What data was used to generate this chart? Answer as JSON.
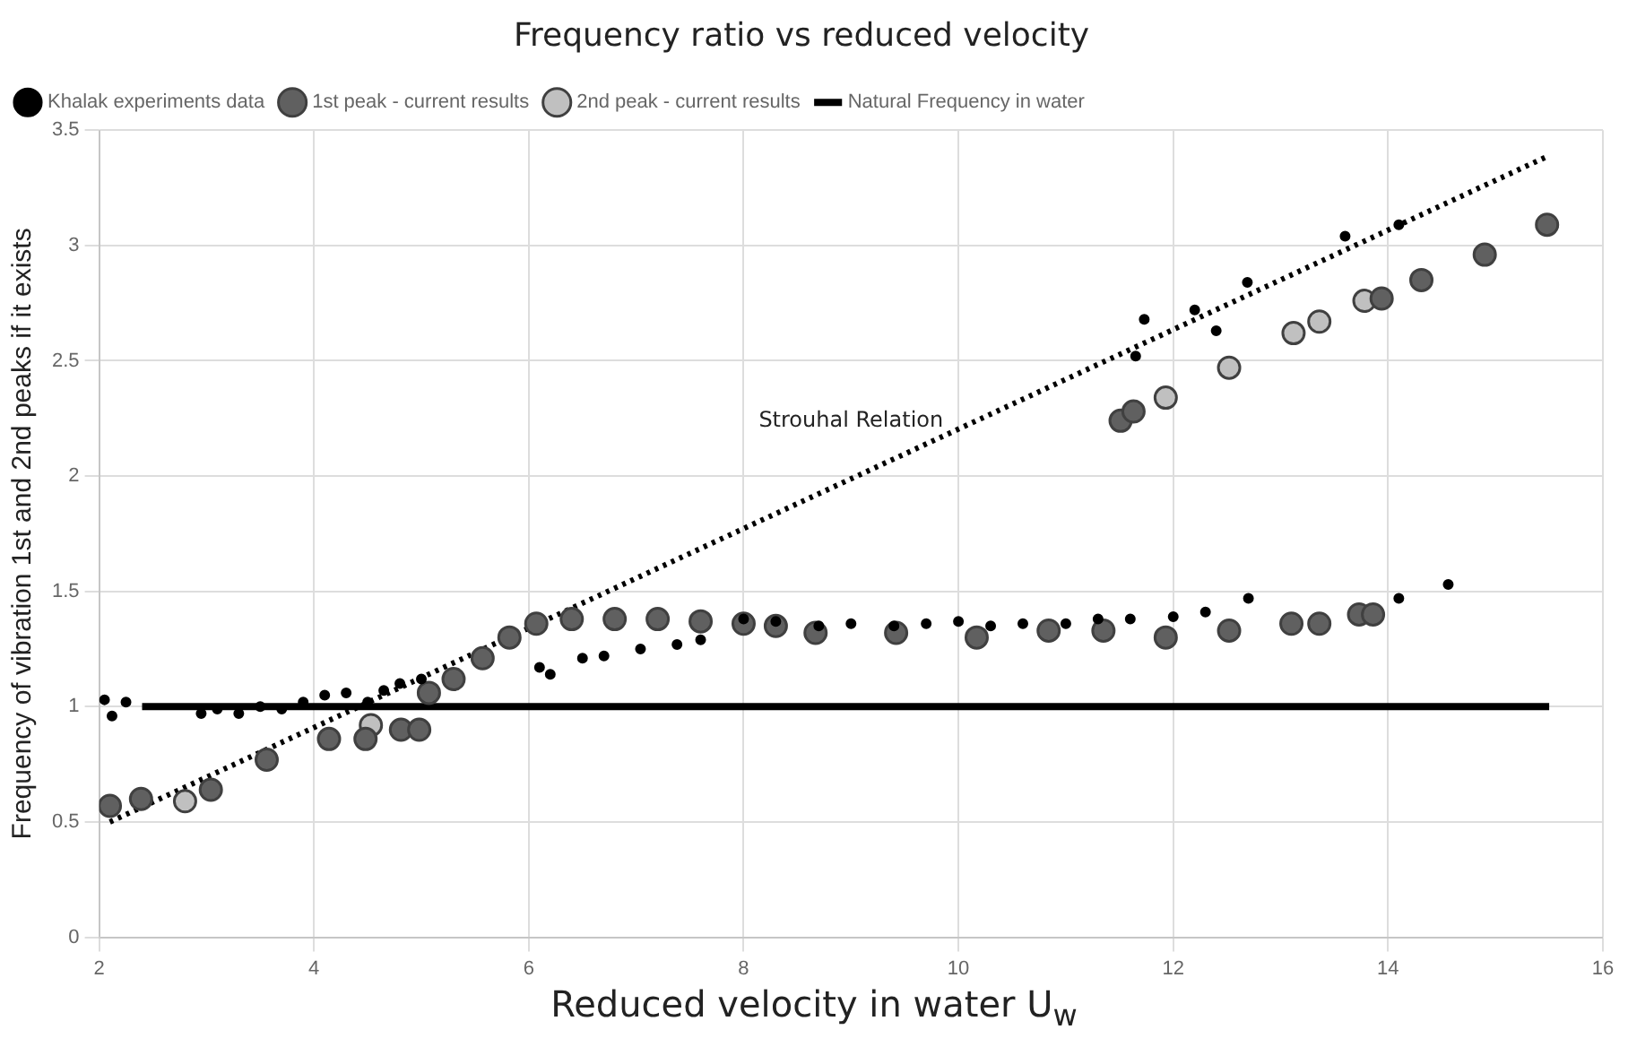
{
  "chart_data": {
    "type": "scatter",
    "title": "Frequency ratio vs reduced velocity",
    "xlabel": "Reduced velocity in water U$_{w}$",
    "ylabel": "Frequency of vibration 1st and 2nd peaks if it exists",
    "xlim": [
      2,
      16
    ],
    "xticks": [
      2,
      4,
      6,
      8,
      10,
      12,
      14,
      16
    ],
    "ylim": [
      0,
      3.5
    ],
    "yticks": [
      0,
      0.5,
      1,
      1.5,
      2,
      2.5,
      3,
      3.5
    ],
    "grid": true,
    "legend": "top left",
    "annotations": [
      "Strouhal Relation"
    ],
    "series": [
      {
        "name": "Khalak experiments data",
        "marker": "circle",
        "color": "#000000",
        "x": [
          2.05,
          2.12,
          2.25,
          2.95,
          3.1,
          3.3,
          3.5,
          3.7,
          3.9,
          4.1,
          4.3,
          4.5,
          4.65,
          4.8,
          5.0,
          6.1,
          6.2,
          6.5,
          6.7,
          7.04,
          7.38,
          7.6,
          8.0,
          8.3,
          8.7,
          9.0,
          9.4,
          9.7,
          10.0,
          10.3,
          10.6,
          11.0,
          11.3,
          11.6,
          12.0,
          12.3,
          12.7,
          14.1,
          14.56,
          11.65,
          11.73,
          12.2,
          12.4,
          12.69,
          13.6,
          14.1
        ],
        "values": [
          1.03,
          0.96,
          1.02,
          0.97,
          0.99,
          0.97,
          1.0,
          0.99,
          1.02,
          1.05,
          1.06,
          1.02,
          1.07,
          1.1,
          1.12,
          1.17,
          1.14,
          1.21,
          1.22,
          1.25,
          1.27,
          1.29,
          1.38,
          1.37,
          1.35,
          1.36,
          1.35,
          1.36,
          1.37,
          1.35,
          1.36,
          1.36,
          1.38,
          1.38,
          1.39,
          1.41,
          1.47,
          1.47,
          1.53,
          2.52,
          2.68,
          2.72,
          2.63,
          2.84,
          3.04,
          3.09
        ]
      },
      {
        "name": "1st peak - current results",
        "marker": "circle",
        "color": "#606060",
        "x": [
          2.1,
          2.39,
          3.04,
          3.56,
          4.14,
          4.48,
          4.81,
          4.98,
          5.07,
          5.3,
          5.57,
          5.82,
          6.07,
          6.4,
          6.8,
          7.2,
          7.6,
          8.0,
          8.3,
          8.67,
          9.42,
          10.17,
          10.84,
          11.35,
          11.93,
          12.52,
          13.1,
          13.36,
          13.73,
          13.86,
          11.51,
          11.63,
          13.86,
          13.94,
          14.31,
          14.9,
          15.48
        ],
        "values": [
          0.57,
          0.6,
          0.64,
          0.77,
          0.86,
          0.86,
          0.9,
          0.9,
          1.06,
          1.12,
          1.21,
          1.3,
          1.36,
          1.38,
          1.38,
          1.38,
          1.37,
          1.36,
          1.35,
          1.32,
          1.32,
          1.3,
          1.33,
          1.33,
          1.3,
          1.33,
          1.36,
          1.36,
          1.4,
          1.4,
          2.24,
          2.28,
          null,
          2.77,
          2.85,
          2.96,
          3.09
        ]
      },
      {
        "name": "2nd peak - current results",
        "marker": "circle",
        "color": "#c0c0c0",
        "x": [
          2.8,
          4.53,
          4.86,
          11.93,
          12.52,
          13.12,
          13.36,
          13.78
        ],
        "values": [
          0.59,
          0.92,
          null,
          2.34,
          2.47,
          2.62,
          2.67,
          2.76
        ]
      },
      {
        "name": "Natural Frequency in water",
        "type": "line",
        "marker": "none",
        "line_style": "solid",
        "color": "#000000",
        "x": [
          2.4,
          15.5
        ],
        "values": [
          1,
          1
        ]
      },
      {
        "type": "line",
        "marker": "none",
        "line_style": "dotted",
        "color": "#000000",
        "x": [
          2.1,
          15.5
        ],
        "values": [
          0.5,
          3.39
        ]
      }
    ]
  }
}
